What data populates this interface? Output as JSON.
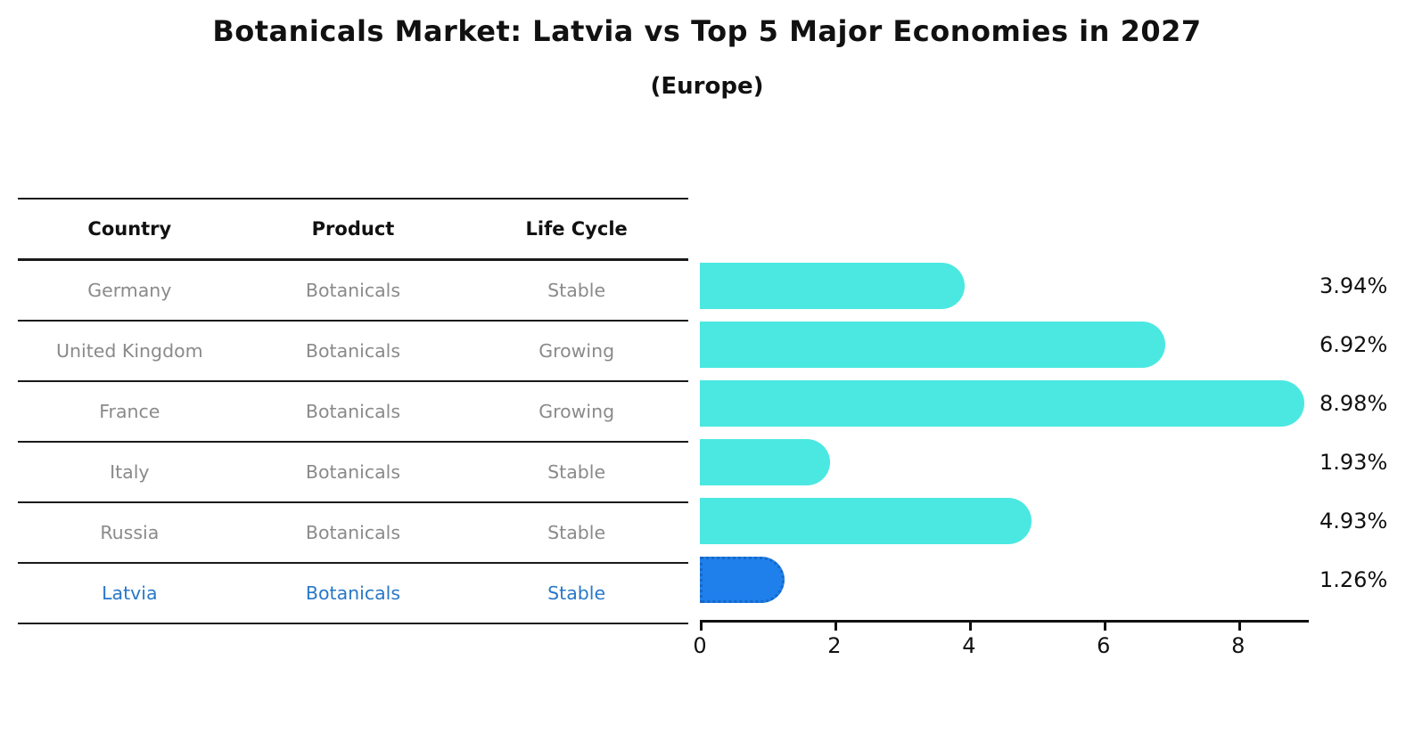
{
  "title": "Botanicals Market: Latvia vs Top 5 Major Economies in 2027",
  "subtitle": "(Europe)",
  "table": {
    "headers": [
      "Country",
      "Product",
      "Life Cycle"
    ],
    "rows": [
      {
        "country": "Germany",
        "product": "Botanicals",
        "life_cycle": "Stable",
        "highlight": false
      },
      {
        "country": "United Kingdom",
        "product": "Botanicals",
        "life_cycle": "Growing",
        "highlight": false
      },
      {
        "country": "France",
        "product": "Botanicals",
        "life_cycle": "Growing",
        "highlight": false
      },
      {
        "country": "Italy",
        "product": "Botanicals",
        "life_cycle": "Stable",
        "highlight": false
      },
      {
        "country": "Russia",
        "product": "Botanicals",
        "life_cycle": "Stable",
        "highlight": true
      }
    ],
    "highlight_row": {
      "country": "Latvia",
      "product": "Botanicals",
      "life_cycle": "Stable"
    }
  },
  "chart_data": {
    "type": "bar",
    "orientation": "horizontal",
    "title": "Botanicals Market: Latvia vs Top 5 Major Economies in 2027",
    "subtitle": "(Europe)",
    "categories": [
      "Germany",
      "United Kingdom",
      "France",
      "Italy",
      "Russia",
      "Latvia"
    ],
    "values": [
      3.94,
      6.92,
      8.98,
      1.93,
      4.93,
      1.26
    ],
    "labels": [
      "3.94%",
      "6.92%",
      "8.98%",
      "1.93%",
      "4.93%",
      "1.26%"
    ],
    "xticks": [
      "0",
      "2",
      "4",
      "6",
      "8"
    ],
    "xtick_values": [
      0,
      2,
      4,
      6,
      8
    ],
    "xlim": [
      0,
      9.05
    ],
    "grid": false,
    "legend": "none",
    "bar_color": "#4ae8e1",
    "highlight_color": "#1f80ec",
    "highlight_index": 5,
    "highlight_text_color": "#2878c8"
  }
}
